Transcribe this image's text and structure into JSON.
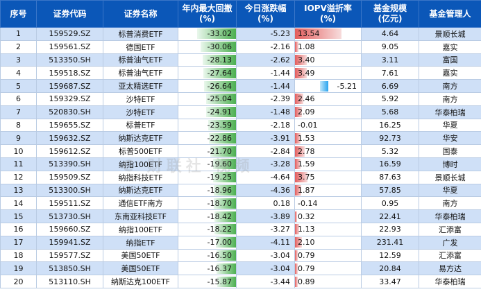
{
  "headers": {
    "no": "序号",
    "code": "证券代码",
    "name": "证券名称",
    "drawdown": "年内最大回撤\n(%)",
    "change": "今日涨跌幅\n(%)",
    "iopv": "IOPV溢折率\n(%)",
    "scale": "基金规模\n(亿元)",
    "manager": "基金管理人"
  },
  "watermark": "C 财联社 视频",
  "rows": [
    {
      "no": "1",
      "code": "159529.SZ",
      "name": "标普消费ETF",
      "drawdown": -33.02,
      "drawdown_text": "-33.02",
      "change": "-5.23",
      "iopv": 13.54,
      "iopv_text": "13.54",
      "scale": "4.64",
      "manager": "景顺长城"
    },
    {
      "no": "2",
      "code": "159561.SZ",
      "name": "德国ETF",
      "drawdown": -30.06,
      "drawdown_text": "-30.06",
      "change": "-2.16",
      "iopv": 1.08,
      "iopv_text": "1.08",
      "scale": "9.05",
      "manager": "嘉实"
    },
    {
      "no": "3",
      "code": "513350.SH",
      "name": "标普油气ETF",
      "drawdown": -28.13,
      "drawdown_text": "-28.13",
      "change": "-2.62",
      "iopv": 3.4,
      "iopv_text": "3.40",
      "scale": "3.11",
      "manager": "富国"
    },
    {
      "no": "4",
      "code": "159518.SZ",
      "name": "标普油气ETF",
      "drawdown": -27.64,
      "drawdown_text": "-27.64",
      "change": "-1.44",
      "iopv": 3.49,
      "iopv_text": "3.49",
      "scale": "7.61",
      "manager": "嘉实"
    },
    {
      "no": "5",
      "code": "159687.SZ",
      "name": "亚太精选ETF",
      "drawdown": -26.64,
      "drawdown_text": "-26.64",
      "change": "-1.44",
      "iopv": -5.21,
      "iopv_text": "-5.21",
      "scale": "6.69",
      "manager": "南方"
    },
    {
      "no": "6",
      "code": "159329.SZ",
      "name": "沙特ETF",
      "drawdown": -25.04,
      "drawdown_text": "-25.04",
      "change": "-2.39",
      "iopv": 2.46,
      "iopv_text": "2.46",
      "scale": "5.92",
      "manager": "南方"
    },
    {
      "no": "7",
      "code": "520830.SH",
      "name": "沙特ETF",
      "drawdown": -24.91,
      "drawdown_text": "-24.91",
      "change": "-1.48",
      "iopv": 2.09,
      "iopv_text": "2.09",
      "scale": "5.68",
      "manager": "华泰柏瑞"
    },
    {
      "no": "8",
      "code": "159655.SZ",
      "name": "标普ETF",
      "drawdown": -23.59,
      "drawdown_text": "-23.59",
      "change": "-2.18",
      "iopv": -0.01,
      "iopv_text": "-0.01",
      "scale": "16.25",
      "manager": "华夏"
    },
    {
      "no": "9",
      "code": "159632.SZ",
      "name": "纳斯达克ETF",
      "drawdown": -22.86,
      "drawdown_text": "-22.86",
      "change": "-3.91",
      "iopv": 1.53,
      "iopv_text": "1.53",
      "scale": "92.73",
      "manager": "华安"
    },
    {
      "no": "10",
      "code": "159612.SZ",
      "name": "标普500ETF",
      "drawdown": -21.7,
      "drawdown_text": "-21.70",
      "change": "-2.84",
      "iopv": 2.78,
      "iopv_text": "2.78",
      "scale": "5.32",
      "manager": "国泰"
    },
    {
      "no": "11",
      "code": "513390.SH",
      "name": "纳指100ETF",
      "drawdown": -19.6,
      "drawdown_text": "-19.60",
      "change": "-3.28",
      "iopv": 1.59,
      "iopv_text": "1.59",
      "scale": "16.59",
      "manager": "博时"
    },
    {
      "no": "12",
      "code": "159509.SZ",
      "name": "纳指科技ETF",
      "drawdown": -19.25,
      "drawdown_text": "-19.25",
      "change": "-4.64",
      "iopv": 3.75,
      "iopv_text": "3.75",
      "scale": "87.63",
      "manager": "景顺长城"
    },
    {
      "no": "13",
      "code": "513300.SH",
      "name": "纳斯达克ETF",
      "drawdown": -18.96,
      "drawdown_text": "-18.96",
      "change": "-4.36",
      "iopv": 1.87,
      "iopv_text": "1.87",
      "scale": "57.85",
      "manager": "华夏"
    },
    {
      "no": "14",
      "code": "159511.SZ",
      "name": "通信ETF南方",
      "drawdown": -18.7,
      "drawdown_text": "-18.70",
      "change": "0.18",
      "iopv": -0.14,
      "iopv_text": "-0.14",
      "scale": "0.95",
      "manager": "南方"
    },
    {
      "no": "15",
      "code": "513730.SH",
      "name": "东南亚科技ETF",
      "drawdown": -18.42,
      "drawdown_text": "-18.42",
      "change": "-3.89",
      "iopv": 0.32,
      "iopv_text": "0.32",
      "scale": "22.41",
      "manager": "华泰柏瑞"
    },
    {
      "no": "16",
      "code": "159660.SZ",
      "name": "纳指100ETF",
      "drawdown": -18.22,
      "drawdown_text": "-18.22",
      "change": "-3.27",
      "iopv": 1.13,
      "iopv_text": "1.13",
      "scale": "22.93",
      "manager": "汇添富"
    },
    {
      "no": "17",
      "code": "159941.SZ",
      "name": "纳指ETF",
      "drawdown": -17.0,
      "drawdown_text": "-17.00",
      "change": "-4.11",
      "iopv": 2.1,
      "iopv_text": "2.10",
      "scale": "231.41",
      "manager": "广发"
    },
    {
      "no": "18",
      "code": "159577.SZ",
      "name": "美国50ETF",
      "drawdown": -16.5,
      "drawdown_text": "-16.50",
      "change": "-3.04",
      "iopv": 0.79,
      "iopv_text": "0.79",
      "scale": "12.59",
      "manager": "汇添富"
    },
    {
      "no": "19",
      "code": "513850.SH",
      "name": "美国50ETF",
      "drawdown": -16.37,
      "drawdown_text": "-16.37",
      "change": "-3.04",
      "iopv": 0.79,
      "iopv_text": "0.79",
      "scale": "20.84",
      "manager": "易方达"
    },
    {
      "no": "20",
      "code": "513110.SH",
      "name": "纳斯达克100ETF",
      "drawdown": -15.87,
      "drawdown_text": "-15.87",
      "change": "-3.44",
      "iopv": 0.89,
      "iopv_text": "0.89",
      "scale": "33.47",
      "manager": "华泰柏瑞"
    }
  ]
}
